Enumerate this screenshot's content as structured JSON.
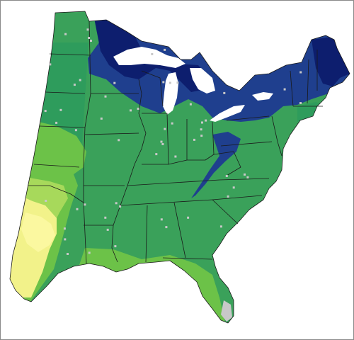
{
  "map": {
    "region": "eastern-united-states",
    "classes": [
      {
        "key": "deep",
        "color": "#0d1e6e"
      },
      {
        "key": "high",
        "color": "#1f3f8e"
      },
      {
        "key": "upper-mid",
        "color": "#2e9c5c"
      },
      {
        "key": "mid",
        "color": "#3aa15a"
      },
      {
        "key": "lower-mid",
        "color": "#6cc248"
      },
      {
        "key": "low",
        "color": "#a7d95b"
      },
      {
        "key": "very-low",
        "color": "#f2f28a"
      },
      {
        "key": "lowest",
        "color": "#fbf8a0"
      },
      {
        "key": "no-data",
        "color": "#c8c8c8"
      }
    ],
    "boundary_color": "#1a1a1a",
    "background_color": "#ffffff"
  }
}
